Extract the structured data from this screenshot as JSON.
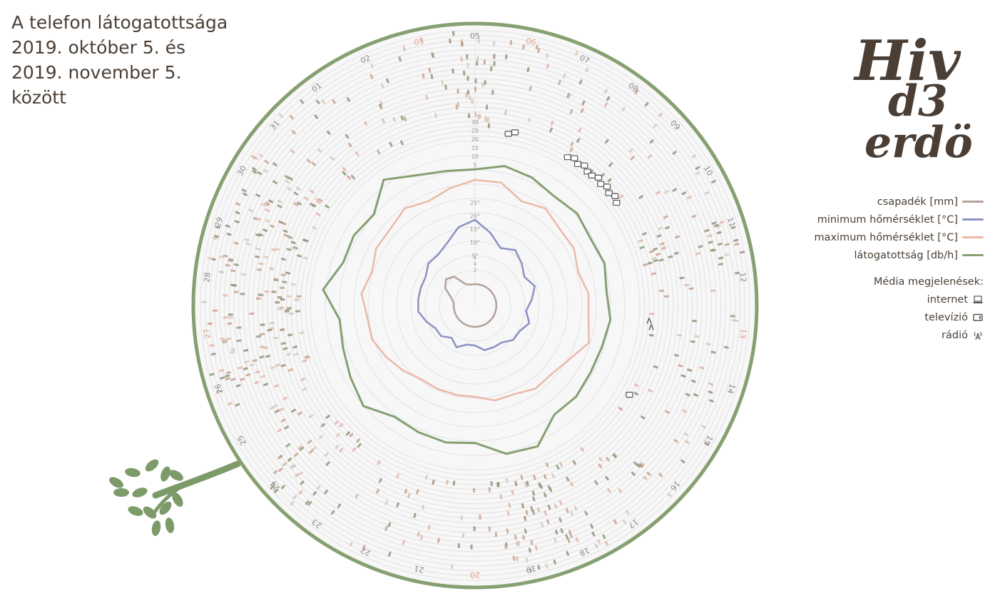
{
  "title": {
    "lines": [
      "A telefon látogatottsága",
      "2019. október 5. és",
      "2019. november 5.",
      "között"
    ]
  },
  "logo": {
    "line1": "Hiv",
    "line2": "d3",
    "line3": "erdö"
  },
  "legend": {
    "series": [
      {
        "label": "csapadék [mm]",
        "color": "#b3a19a"
      },
      {
        "label": "minimum hőmérséklet [°C]",
        "color": "#8b92c2"
      },
      {
        "label": "maximum hőmérséklet [°C]",
        "color": "#ebb9a8"
      },
      {
        "label": "látogatottság [db/h]",
        "color": "#86a071"
      }
    ],
    "media_title": "Média megjelenések:",
    "media": [
      {
        "label": "internet",
        "icon": "laptop-icon"
      },
      {
        "label": "televízió",
        "icon": "tv-icon"
      },
      {
        "label": "rádió",
        "icon": "radio-antenna-icon"
      }
    ]
  },
  "chart_data": {
    "type": "radial",
    "day_labels": [
      "05",
      "06",
      "07",
      "08",
      "09",
      "10",
      "11",
      "12",
      "13",
      "14",
      "15",
      "16",
      "17",
      "18",
      "19",
      "20",
      "21",
      "22",
      "23",
      "24",
      "25",
      "26",
      "27",
      "28",
      "29",
      "30",
      "31",
      "01",
      "02",
      "03"
    ],
    "weekend_days": [
      "06",
      "13",
      "20",
      "27",
      "03"
    ],
    "visits_scale": {
      "unit": "db/h",
      "ticks": [
        5,
        10,
        15,
        20,
        25,
        30
      ]
    },
    "temperature_scale": {
      "unit": "°",
      "ticks": [
        5,
        10,
        15,
        20,
        25
      ]
    },
    "precip_scale": {
      "unit": "mm",
      "ticks": [
        2,
        4,
        6
      ]
    },
    "series": [
      {
        "name": "látogatottság [db/h]",
        "values": [
          6,
          11,
          9,
          5,
          7,
          4,
          6,
          3,
          6,
          4,
          4,
          6,
          5,
          20,
          18,
          7,
          9,
          8,
          7,
          17,
          12,
          8,
          6,
          19,
          8,
          9,
          6,
          21,
          11,
          7
        ]
      },
      {
        "name": "maximum hőmérséklet [°C]",
        "values": [
          17,
          17,
          15,
          16,
          15,
          15,
          14,
          15,
          15,
          16,
          14,
          13,
          13,
          12,
          12,
          11,
          11,
          11,
          11,
          12,
          13,
          14,
          14,
          15,
          14,
          15,
          15,
          16,
          15,
          16
        ]
      },
      {
        "name": "minimum hőmérséklet [°C]",
        "values": [
          10,
          8,
          6,
          7,
          6,
          5,
          6,
          5,
          4,
          5,
          4,
          4,
          3,
          3,
          3,
          2,
          2,
          3,
          2,
          3,
          3,
          4,
          5,
          5,
          5,
          5,
          6,
          6,
          7,
          9
        ]
      },
      {
        "name": "csapadék [mm]",
        "values": [
          0,
          0,
          0,
          0,
          0,
          0,
          0,
          0,
          0,
          0,
          0,
          0,
          0,
          0,
          0,
          0,
          0,
          0,
          0,
          0,
          0,
          0,
          0,
          0,
          0.5,
          1.8,
          2.5,
          2.0,
          0.3,
          0
        ]
      }
    ],
    "media_events": [
      {
        "type": "internet",
        "day": "06",
        "count": 2
      },
      {
        "type": "internet",
        "day": "08",
        "count": 5
      },
      {
        "type": "internet",
        "day": "09",
        "count": 7
      },
      {
        "type": "radio",
        "day": "13",
        "count": 2
      },
      {
        "type": "television",
        "day": "15",
        "count": 1
      }
    ]
  },
  "colors": {
    "frame": "#86a071",
    "panel": "#f7f7f7",
    "ring": "#dcdcdc",
    "day_label": "#8a8a8a",
    "weekend_label": "#e59a8a",
    "tree": "#7d9a6a",
    "logo": "#4b3e35"
  }
}
